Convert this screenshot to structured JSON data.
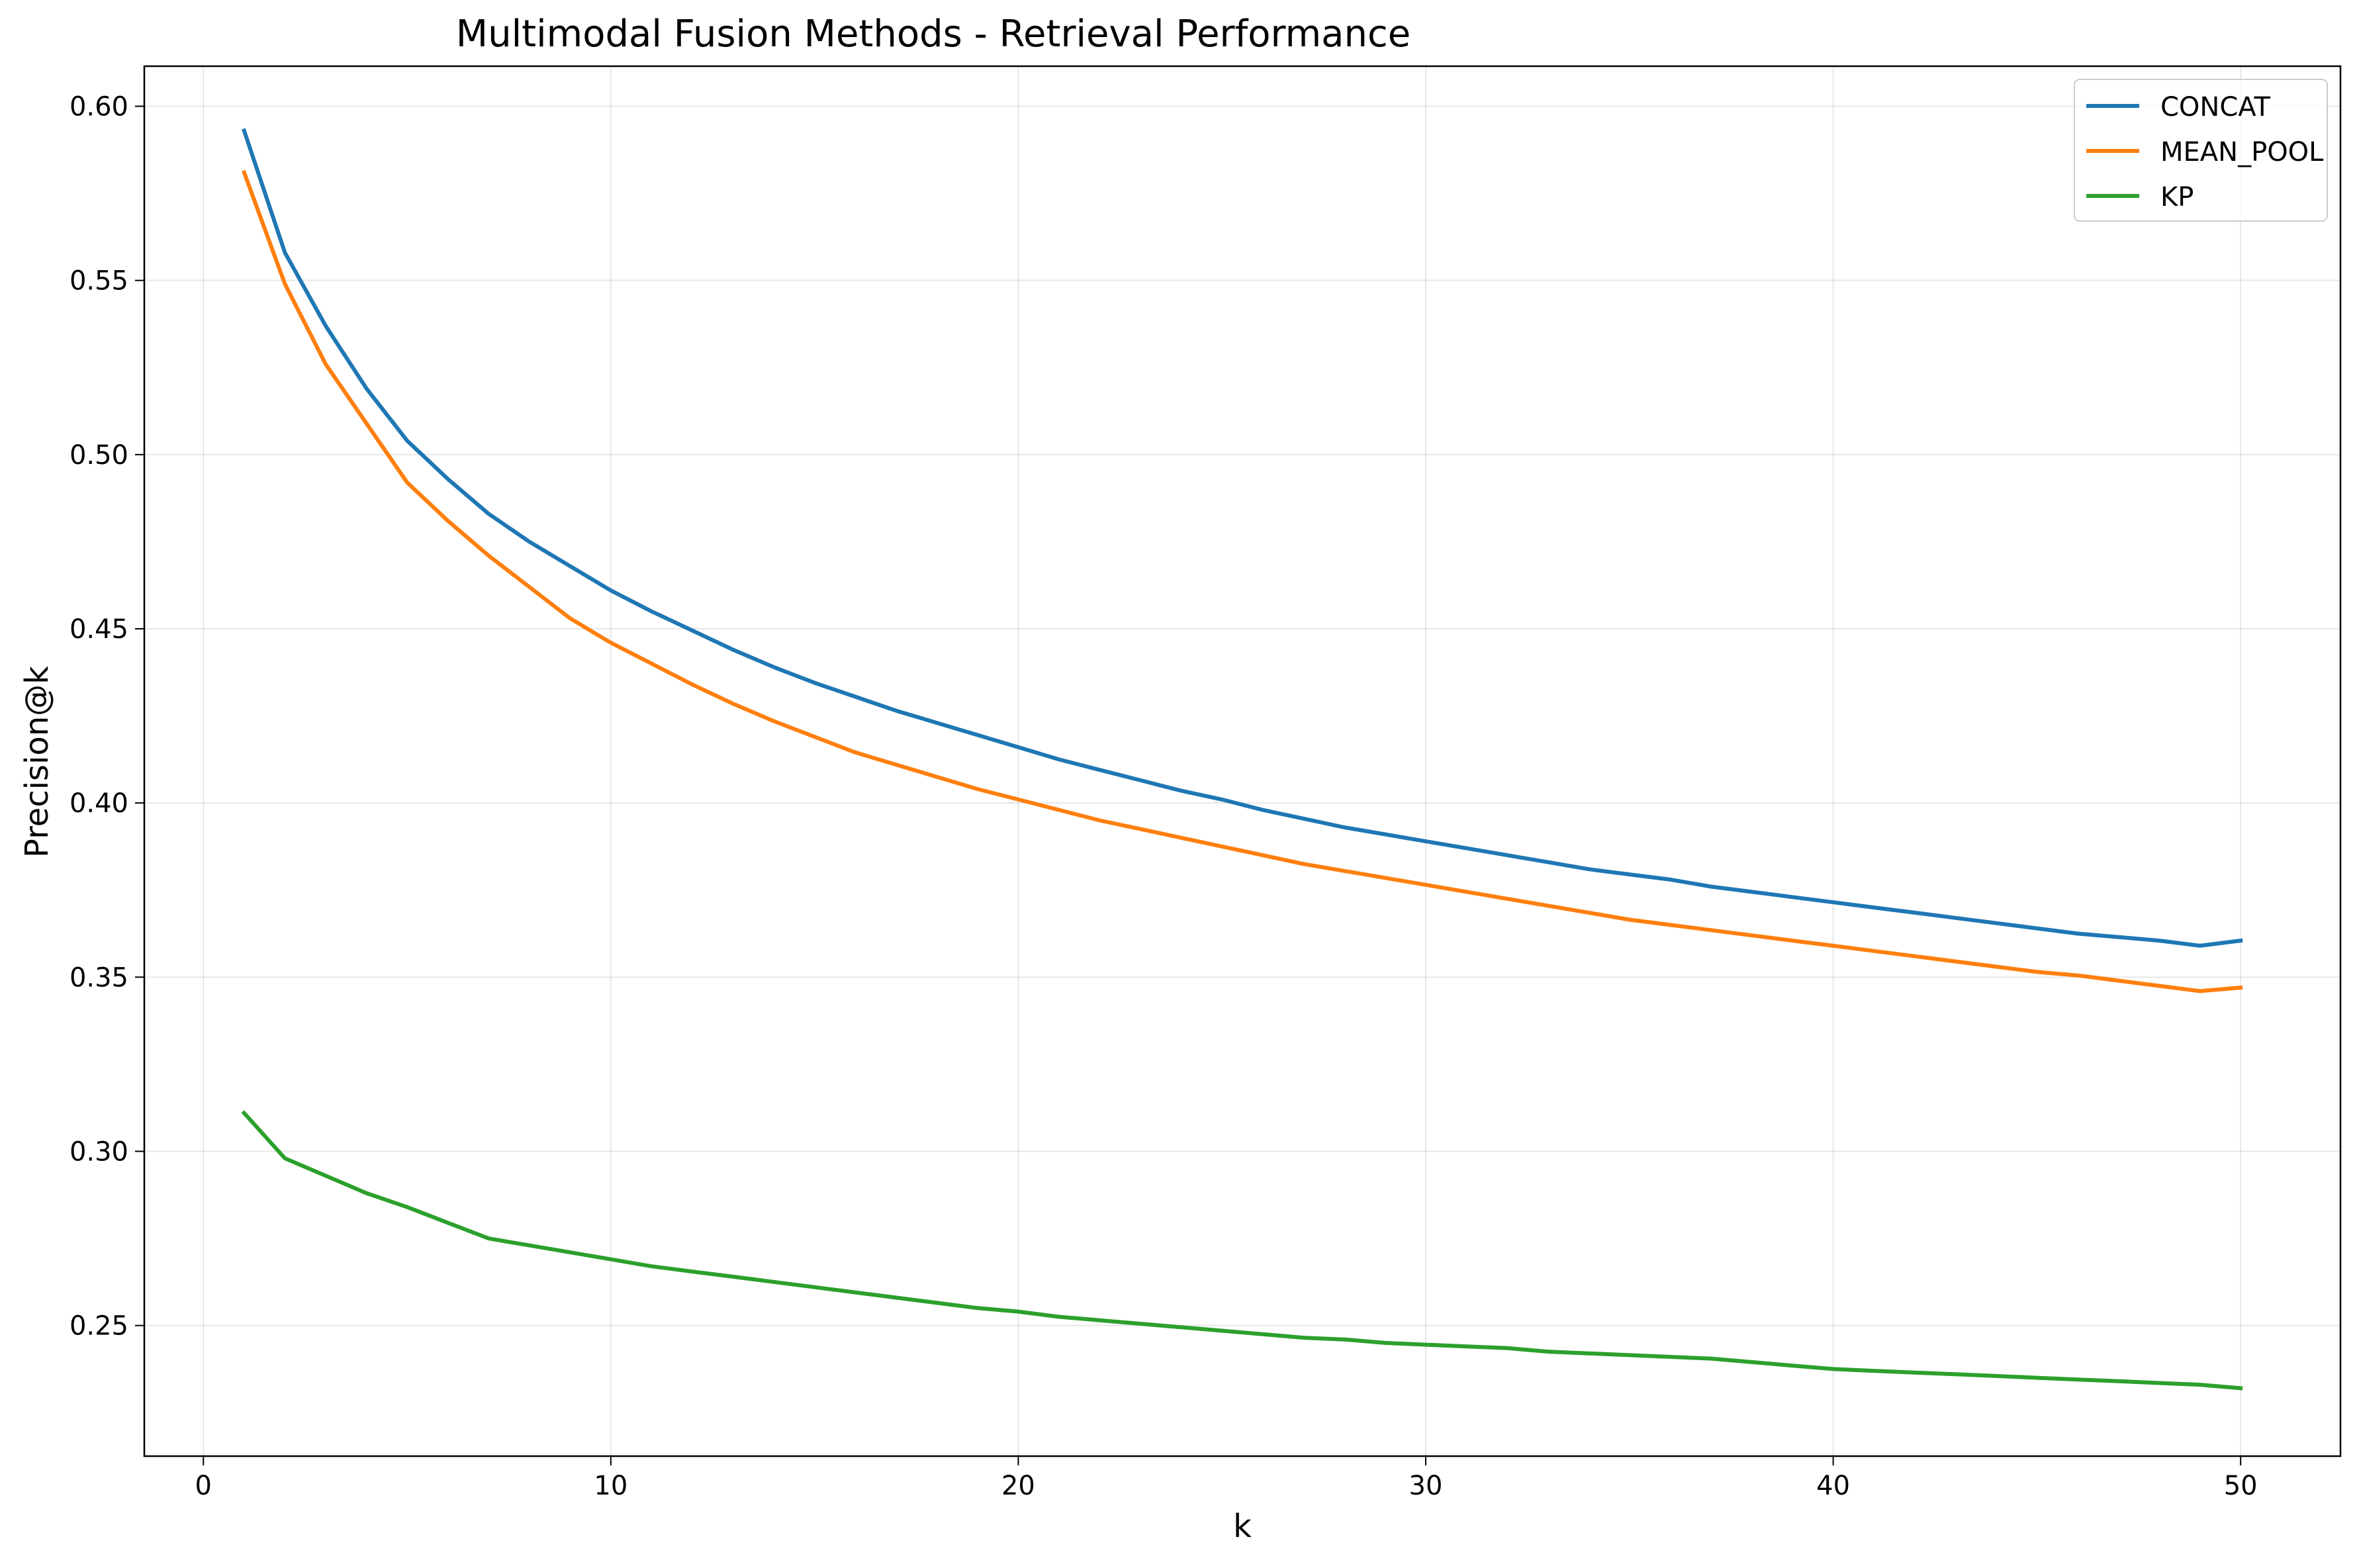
{
  "chart_data": {
    "type": "line",
    "title": "Multimodal Fusion Methods - Retrieval Performance",
    "xlabel": "k",
    "ylabel": "Precision@k",
    "xlim": [
      -1.45,
      52.45
    ],
    "ylim": [
      0.2125,
      0.6115
    ],
    "xticks": [
      0,
      10,
      20,
      30,
      40,
      50
    ],
    "xtick_labels": [
      "0",
      "10",
      "20",
      "30",
      "40",
      "50"
    ],
    "yticks": [
      0.25,
      0.3,
      0.35,
      0.4,
      0.45,
      0.5,
      0.55,
      0.6
    ],
    "ytick_labels": [
      "0.25",
      "0.30",
      "0.35",
      "0.40",
      "0.45",
      "0.50",
      "0.55",
      "0.60"
    ],
    "grid": true,
    "legend_position": "top-right",
    "x": [
      1,
      2,
      3,
      4,
      5,
      6,
      7,
      8,
      9,
      10,
      11,
      12,
      13,
      14,
      15,
      16,
      17,
      18,
      19,
      20,
      21,
      22,
      23,
      24,
      25,
      26,
      27,
      28,
      29,
      30,
      31,
      32,
      33,
      34,
      35,
      36,
      37,
      38,
      39,
      40,
      41,
      42,
      43,
      44,
      45,
      46,
      47,
      48,
      49,
      50
    ],
    "series": [
      {
        "name": "CONCAT",
        "color": "#1f77b4",
        "values": [
          0.593,
          0.558,
          0.537,
          0.519,
          0.504,
          0.493,
          0.483,
          0.475,
          0.468,
          0.461,
          0.455,
          0.4495,
          0.444,
          0.439,
          0.4345,
          0.4305,
          0.4265,
          0.423,
          0.4195,
          0.416,
          0.4125,
          0.4095,
          0.4065,
          0.4035,
          0.401,
          0.398,
          0.3955,
          0.393,
          0.391,
          0.389,
          0.387,
          0.385,
          0.383,
          0.381,
          0.3795,
          0.378,
          0.376,
          0.3745,
          0.373,
          0.3715,
          0.37,
          0.3685,
          0.367,
          0.3655,
          0.364,
          0.3625,
          0.3615,
          0.3605,
          0.359,
          0.3605
        ]
      },
      {
        "name": "MEAN_POOL",
        "color": "#ff7f0e",
        "values": [
          0.581,
          0.549,
          0.526,
          0.509,
          0.492,
          0.481,
          0.471,
          0.462,
          0.453,
          0.446,
          0.44,
          0.434,
          0.4285,
          0.4235,
          0.419,
          0.4145,
          0.411,
          0.4075,
          0.404,
          0.401,
          0.398,
          0.395,
          0.3925,
          0.39,
          0.3875,
          0.385,
          0.3825,
          0.3805,
          0.3785,
          0.3765,
          0.3745,
          0.3725,
          0.3705,
          0.3685,
          0.3665,
          0.365,
          0.3635,
          0.362,
          0.3605,
          0.359,
          0.3575,
          0.356,
          0.3545,
          0.353,
          0.3515,
          0.3505,
          0.349,
          0.3475,
          0.346,
          0.347
        ]
      },
      {
        "name": "KP",
        "color": "#2ca02c",
        "values": [
          0.311,
          0.298,
          0.293,
          0.288,
          0.284,
          0.2795,
          0.275,
          0.273,
          0.271,
          0.269,
          0.267,
          0.2655,
          0.264,
          0.2625,
          0.261,
          0.2595,
          0.258,
          0.2565,
          0.255,
          0.254,
          0.2525,
          0.2515,
          0.2505,
          0.2495,
          0.2485,
          0.2475,
          0.2465,
          0.246,
          0.245,
          0.2445,
          0.244,
          0.2435,
          0.2425,
          0.242,
          0.2415,
          0.241,
          0.2405,
          0.2395,
          0.2385,
          0.2375,
          0.237,
          0.2365,
          0.236,
          0.2355,
          0.235,
          0.2345,
          0.234,
          0.2335,
          0.233,
          0.232
        ]
      }
    ]
  }
}
